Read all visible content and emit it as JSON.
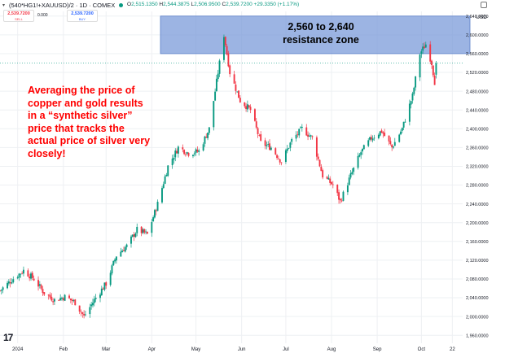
{
  "header": {
    "symbol_title": "(540*HG1!+XAUUSD)/2 · 1D · COMEX",
    "ohlc": [
      {
        "label": "O",
        "value": "2,515.1350"
      },
      {
        "label": "H",
        "value": "2,544.3875"
      },
      {
        "label": "L",
        "value": "2,506.9500"
      },
      {
        "label": "C",
        "value": "2,539.7200"
      }
    ],
    "change": "+29.3350 (+1.17%)",
    "currency": "USD"
  },
  "quote": {
    "sell_price": "2,539.7200",
    "sell_label": "SELL",
    "spread": "0.000",
    "buy_price": "2,539.7200",
    "buy_label": "BUY"
  },
  "annotation": {
    "text": "Averaging the price of copper and gold results in a “synthetic silver” price that tracks the actual price of silver very closely!",
    "color": "#ff0000"
  },
  "resistance": {
    "text_line1": "2,560 to 2,640",
    "text_line2": "resistance zone",
    "fill": "#7b9bd9"
  },
  "logo_text": "17",
  "colors": {
    "up": "#089981",
    "down": "#f23645",
    "grid": "#eef0f3"
  },
  "chart_data": {
    "type": "candlestick",
    "title": "(540*HG1!+XAUUSD)/2 · 1D · COMEX",
    "ylabel": "USD",
    "ylim": [
      1943,
      2650
    ],
    "y_ticks": [
      1960,
      2000,
      2040,
      2080,
      2120,
      2160,
      2200,
      2240,
      2280,
      2320,
      2360,
      2400,
      2440,
      2480,
      2520,
      2560,
      2600,
      2640
    ],
    "y_tick_labels": [
      "1,960.0000",
      "2,000.0000",
      "2,040.0000",
      "2,080.0000",
      "2,120.0000",
      "2,160.0000",
      "2,200.0000",
      "2,240.0000",
      "2,280.0000",
      "2,320.0000",
      "2,360.0000",
      "2,400.0000",
      "2,440.0000",
      "2,480.0000",
      "2,520.0000",
      "2,560.0000",
      "2,600.0000",
      "2,640.0000"
    ],
    "x_axis_labels": [
      "2024",
      "Feb",
      "Mar",
      "Apr",
      "May",
      "Jun",
      "Jul",
      "Aug",
      "Sep",
      "Oct",
      "22"
    ],
    "x_axis_label_dates": [
      "2024-01-01",
      "2024-02-01",
      "2024-03-01",
      "2024-04-01",
      "2024-05-01",
      "2024-06-01",
      "2024-07-01",
      "2024-08-01",
      "2024-09-01",
      "2024-10-01",
      "2024-10-22"
    ],
    "x_range": [
      "2023-12-20",
      "2024-10-29"
    ],
    "resistance_zone": [
      2560,
      2640
    ],
    "last_price": 2539.72,
    "daily_close_path": [
      [
        "2023-12-20",
        2055
      ],
      [
        "2023-12-28",
        2078
      ],
      [
        "2024-01-05",
        2098
      ],
      [
        "2024-01-12",
        2080
      ],
      [
        "2024-01-19",
        2050
      ],
      [
        "2024-01-26",
        2035
      ],
      [
        "2024-02-02",
        2042
      ],
      [
        "2024-02-09",
        2030
      ],
      [
        "2024-02-15",
        2000
      ],
      [
        "2024-02-23",
        2040
      ],
      [
        "2024-03-01",
        2070
      ],
      [
        "2024-03-08",
        2130
      ],
      [
        "2024-03-15",
        2150
      ],
      [
        "2024-03-22",
        2185
      ],
      [
        "2024-03-29",
        2175
      ],
      [
        "2024-04-05",
        2240
      ],
      [
        "2024-04-12",
        2320
      ],
      [
        "2024-04-19",
        2360
      ],
      [
        "2024-04-26",
        2348
      ],
      [
        "2024-05-03",
        2352
      ],
      [
        "2024-05-10",
        2400
      ],
      [
        "2024-05-17",
        2540
      ],
      [
        "2024-05-20",
        2600
      ],
      [
        "2024-05-24",
        2520
      ],
      [
        "2024-05-31",
        2460
      ],
      [
        "2024-06-07",
        2440
      ],
      [
        "2024-06-14",
        2370
      ],
      [
        "2024-06-21",
        2360
      ],
      [
        "2024-06-28",
        2330
      ],
      [
        "2024-07-05",
        2375
      ],
      [
        "2024-07-12",
        2400
      ],
      [
        "2024-07-19",
        2380
      ],
      [
        "2024-07-26",
        2300
      ],
      [
        "2024-08-02",
        2280
      ],
      [
        "2024-08-07",
        2245
      ],
      [
        "2024-08-14",
        2300
      ],
      [
        "2024-08-21",
        2350
      ],
      [
        "2024-08-28",
        2380
      ],
      [
        "2024-09-04",
        2395
      ],
      [
        "2024-09-11",
        2360
      ],
      [
        "2024-09-18",
        2400
      ],
      [
        "2024-09-25",
        2470
      ],
      [
        "2024-09-30",
        2560
      ],
      [
        "2024-10-04",
        2580
      ],
      [
        "2024-10-08",
        2540
      ],
      [
        "2024-10-10",
        2500
      ],
      [
        "2024-10-11",
        2540
      ]
    ]
  }
}
